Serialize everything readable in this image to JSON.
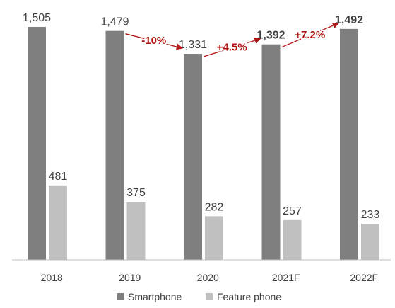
{
  "chart_data": {
    "type": "bar",
    "title": "",
    "xlabel": "",
    "ylabel": "",
    "categories": [
      "2018",
      "2019",
      "2020",
      "2021F",
      "2022F"
    ],
    "ylim": [
      0,
      1600
    ],
    "grid": false,
    "legend_position": "bottom",
    "series": [
      {
        "name": "Smartphone",
        "color": "#7f7f7f",
        "values": [
          1505,
          1479,
          1331,
          1392,
          1492
        ],
        "labels": [
          "1,505",
          "1,479",
          "1,331",
          "1,392",
          "1,492"
        ]
      },
      {
        "name": "Feature phone",
        "color": "#c0c0c0",
        "values": [
          481,
          375,
          282,
          257,
          233
        ],
        "labels": [
          "481",
          "375",
          "282",
          "257",
          "233"
        ]
      }
    ],
    "bold_labels": [
      {
        "series": 0,
        "category": "2021F"
      },
      {
        "series": 0,
        "category": "2022F"
      }
    ],
    "annotations": [
      {
        "text": "-10%",
        "from": "2019",
        "to": "2020",
        "color": "#b01515"
      },
      {
        "text": "+4.5%",
        "from": "2020",
        "to": "2021F",
        "color": "#b01515"
      },
      {
        "text": "+7.2%",
        "from": "2021F",
        "to": "2022F",
        "color": "#b01515"
      }
    ]
  }
}
